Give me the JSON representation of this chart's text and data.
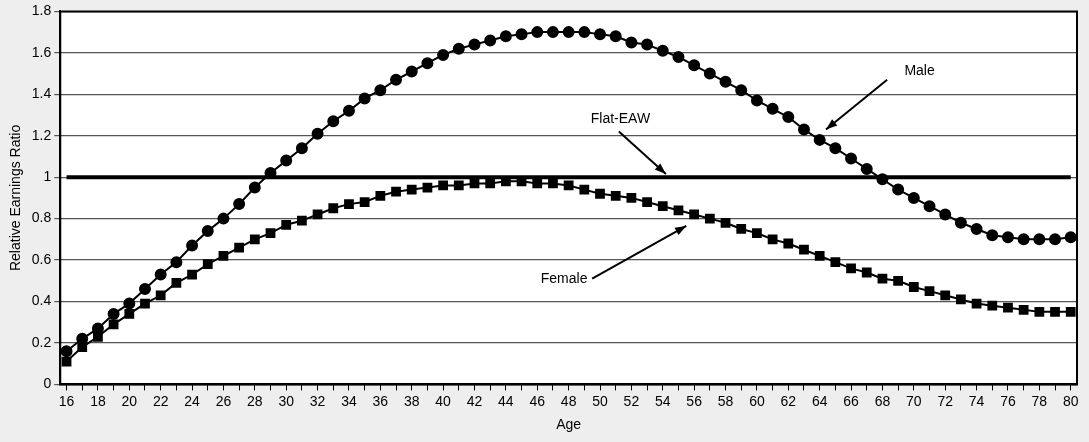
{
  "chart_data": {
    "type": "line",
    "xlabel": "Age",
    "ylabel": "Relative Earnings Ratio",
    "x": [
      16,
      17,
      18,
      19,
      20,
      21,
      22,
      23,
      24,
      25,
      26,
      27,
      28,
      29,
      30,
      31,
      32,
      33,
      34,
      35,
      36,
      37,
      38,
      39,
      40,
      41,
      42,
      43,
      44,
      45,
      46,
      47,
      48,
      49,
      50,
      51,
      52,
      53,
      54,
      55,
      56,
      57,
      58,
      59,
      60,
      61,
      62,
      63,
      64,
      65,
      66,
      67,
      68,
      69,
      70,
      71,
      72,
      73,
      74,
      75,
      76,
      77,
      78,
      79,
      80
    ],
    "series": [
      {
        "name": "Male",
        "color": "#000000",
        "marker": "circle",
        "values": [
          0.16,
          0.22,
          0.27,
          0.34,
          0.39,
          0.46,
          0.53,
          0.59,
          0.67,
          0.74,
          0.8,
          0.87,
          0.95,
          1.02,
          1.08,
          1.14,
          1.21,
          1.27,
          1.32,
          1.38,
          1.42,
          1.47,
          1.51,
          1.55,
          1.59,
          1.62,
          1.64,
          1.66,
          1.68,
          1.69,
          1.7,
          1.7,
          1.7,
          1.7,
          1.69,
          1.68,
          1.65,
          1.64,
          1.61,
          1.58,
          1.54,
          1.5,
          1.46,
          1.42,
          1.37,
          1.33,
          1.29,
          1.23,
          1.18,
          1.14,
          1.09,
          1.04,
          0.99,
          0.94,
          0.9,
          0.86,
          0.82,
          0.78,
          0.75,
          0.72,
          0.71,
          0.7,
          0.7,
          0.7,
          0.71
        ]
      },
      {
        "name": "Female",
        "color": "#000000",
        "marker": "square",
        "values": [
          0.11,
          0.18,
          0.23,
          0.29,
          0.34,
          0.39,
          0.43,
          0.49,
          0.53,
          0.58,
          0.62,
          0.66,
          0.7,
          0.73,
          0.77,
          0.79,
          0.82,
          0.85,
          0.87,
          0.88,
          0.91,
          0.93,
          0.94,
          0.95,
          0.96,
          0.96,
          0.97,
          0.97,
          0.98,
          0.98,
          0.97,
          0.97,
          0.96,
          0.94,
          0.92,
          0.91,
          0.9,
          0.88,
          0.86,
          0.84,
          0.82,
          0.8,
          0.78,
          0.75,
          0.73,
          0.7,
          0.68,
          0.65,
          0.62,
          0.59,
          0.56,
          0.54,
          0.51,
          0.5,
          0.47,
          0.45,
          0.43,
          0.41,
          0.39,
          0.38,
          0.37,
          0.36,
          0.35,
          0.35,
          0.35
        ]
      }
    ],
    "ref_lines": [
      {
        "axis": "y",
        "value": 1,
        "label": "Flat-EAW",
        "color": "#000000",
        "line_style": "solid"
      }
    ],
    "xlim": [
      15.6,
      80.4
    ],
    "xticks": [
      16,
      {
        "value": 17,
        "label": null
      },
      18,
      {
        "value": 19,
        "label": null
      },
      20,
      {
        "value": 21,
        "label": null
      },
      22,
      {
        "value": 23,
        "label": null
      },
      24,
      {
        "value": 25,
        "label": null
      },
      26,
      {
        "value": 27,
        "label": null
      },
      28,
      {
        "value": 29,
        "label": null
      },
      30,
      {
        "value": 31,
        "label": null
      },
      32,
      {
        "value": 33,
        "label": null
      },
      34,
      {
        "value": 35,
        "label": null
      },
      36,
      {
        "value": 37,
        "label": null
      },
      38,
      {
        "value": 39,
        "label": null
      },
      40,
      {
        "value": 41,
        "label": null
      },
      42,
      {
        "value": 43,
        "label": null
      },
      44,
      {
        "value": 45,
        "label": null
      },
      46,
      {
        "value": 47,
        "label": null
      },
      48,
      {
        "value": 49,
        "label": null
      },
      50,
      {
        "value": 51,
        "label": null
      },
      52,
      {
        "value": 53,
        "label": null
      },
      54,
      {
        "value": 55,
        "label": null
      },
      56,
      {
        "value": 57,
        "label": null
      },
      58,
      {
        "value": 59,
        "label": null
      },
      60,
      {
        "value": 61,
        "label": null
      },
      62,
      {
        "value": 63,
        "label": null
      },
      64,
      {
        "value": 65,
        "label": null
      },
      66,
      {
        "value": 67,
        "label": null
      },
      68,
      {
        "value": 69,
        "label": null
      },
      70,
      {
        "value": 71,
        "label": null
      },
      72,
      {
        "value": 73,
        "label": null
      },
      74,
      {
        "value": 75,
        "label": null
      },
      76,
      {
        "value": 77,
        "label": null
      },
      78,
      {
        "value": 79,
        "label": null
      },
      80
    ],
    "ylim": [
      0,
      1.8
    ],
    "yticks": [
      0,
      0.2,
      0.4,
      0.6,
      0.8,
      1,
      1.2,
      1.4,
      1.6,
      1.8
    ],
    "grid": "y",
    "legend": false
  }
}
